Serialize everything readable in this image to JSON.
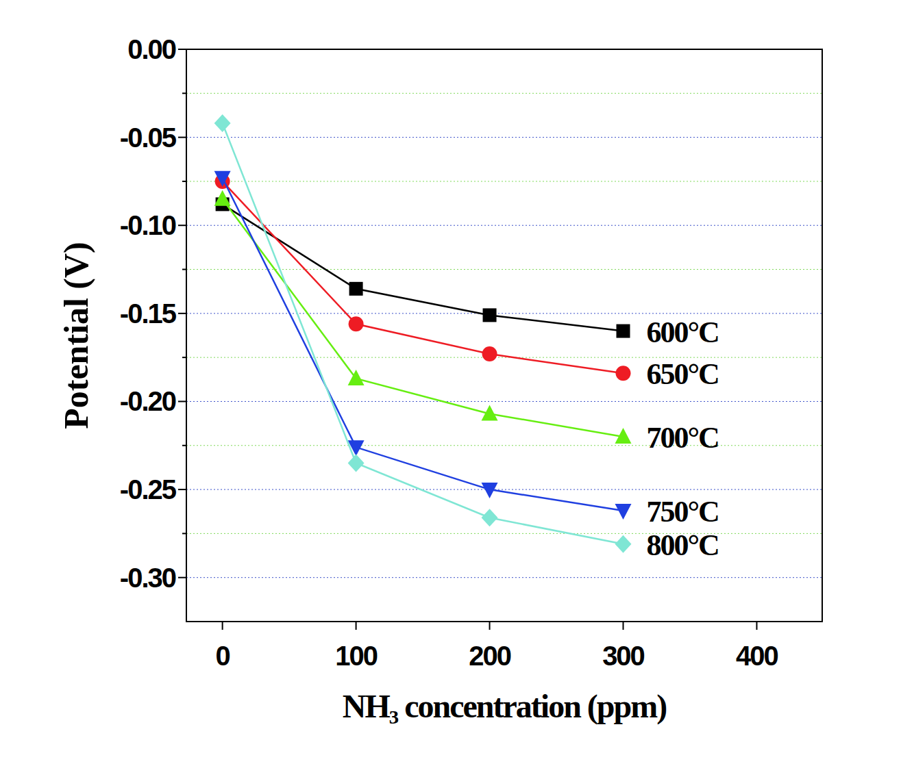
{
  "chart_data": {
    "type": "line",
    "x_label": "NH₃ concentration (ppm)",
    "y_label": "Potential (V)",
    "x": [
      0,
      100,
      200,
      300
    ],
    "xlim": [
      -27,
      449
    ],
    "xticks": [
      0,
      100,
      200,
      300,
      400
    ],
    "ylim": [
      -0.325,
      0
    ],
    "yticks": [
      {
        "value": -0.3,
        "label": "-0.30"
      },
      {
        "value": -0.25,
        "label": "-0.25"
      },
      {
        "value": -0.2,
        "label": "-0.20"
      },
      {
        "value": -0.15,
        "label": "-0.15"
      },
      {
        "value": -0.1,
        "label": "-0.10"
      },
      {
        "value": -0.05,
        "label": "-0.05"
      },
      {
        "value": 0.0,
        "label": "0.00"
      }
    ],
    "grid": true,
    "series": [
      {
        "name": "600°C",
        "color": "#000000",
        "marker": "square",
        "values": [
          -0.088,
          -0.136,
          -0.151,
          -0.16
        ]
      },
      {
        "name": "650°C",
        "color": "#ee1c24",
        "marker": "circle",
        "values": [
          -0.075,
          -0.156,
          -0.173,
          -0.184
        ]
      },
      {
        "name": "700°C",
        "color": "#66ee11",
        "marker": "triangle-up",
        "values": [
          -0.085,
          -0.187,
          -0.207,
          -0.22
        ]
      },
      {
        "name": "750°C",
        "color": "#1f3fe0",
        "marker": "triangle-down",
        "values": [
          -0.073,
          -0.226,
          -0.25,
          -0.262
        ]
      },
      {
        "name": "800°C",
        "color": "#7fe6d4",
        "marker": "diamond",
        "values": [
          -0.042,
          -0.235,
          -0.266,
          -0.281
        ]
      }
    ]
  }
}
